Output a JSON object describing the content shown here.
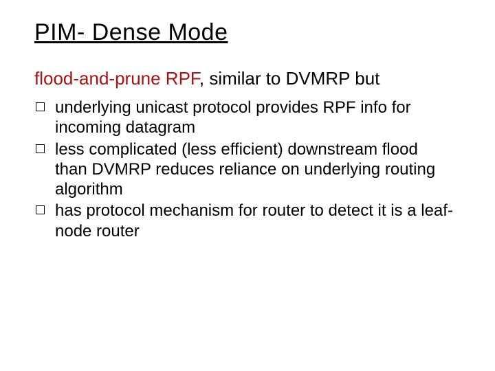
{
  "slide": {
    "title": "PIM- Dense Mode",
    "subhead_highlight": "flood-and-prune RPF",
    "subhead_rest": ", similar to DVMRP but",
    "bullets": [
      "underlying unicast protocol provides RPF info for incoming datagram",
      "less complicated (less efficient) downstream flood than DVMRP reduces reliance on underlying routing algorithm",
      "has protocol mechanism for router to detect it is a leaf-node router"
    ]
  },
  "style": {
    "background_color": "#ffffff",
    "text_color": "#000000",
    "highlight_color": "#ae0f0f",
    "title_fontsize": 34,
    "subhead_fontsize": 26,
    "bullet_fontsize": 24,
    "font_family": "Comic Sans MS",
    "bullet_marker": "hollow-square",
    "slide_width": 720,
    "slide_height": 540
  }
}
